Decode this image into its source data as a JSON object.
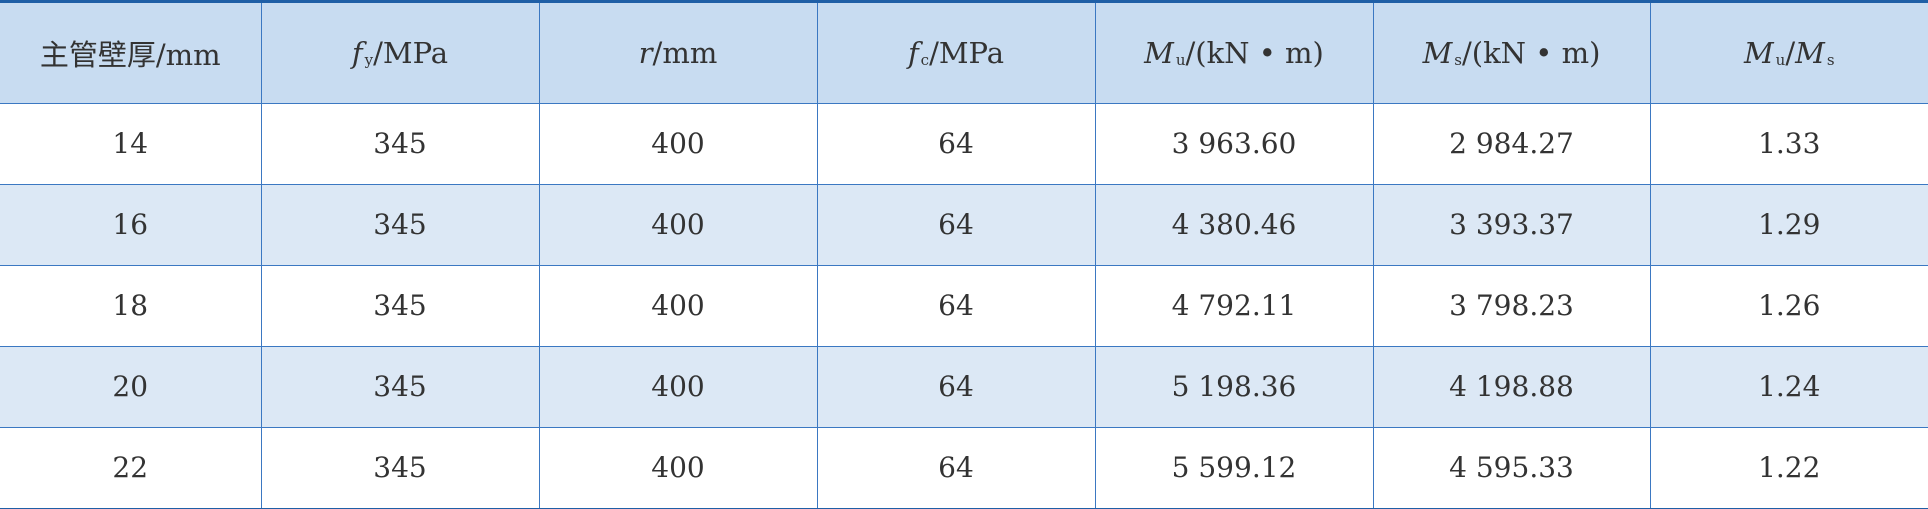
{
  "table": {
    "headers": [
      {
        "text": "主管壁厚/mm"
      },
      {
        "symbol": "f",
        "sub": "y",
        "unit": "/MPa"
      },
      {
        "symbol": "r",
        "sub": "",
        "unit": "/mm"
      },
      {
        "symbol": "f",
        "sub": "c",
        "unit": "/MPa"
      },
      {
        "symbol": "M",
        "sub": "u",
        "unit": "/(kN • m)"
      },
      {
        "symbol": "M",
        "sub": "s",
        "unit": "/(kN • m)"
      },
      {
        "symbol": "M",
        "sub": "u",
        "unit": "/",
        "symbol2": "M",
        "sub2": "s"
      }
    ],
    "rows": [
      [
        "14",
        "345",
        "400",
        "64",
        "3 963.60",
        "2 984.27",
        "1.33"
      ],
      [
        "16",
        "345",
        "400",
        "64",
        "4 380.46",
        "3 393.37",
        "1.29"
      ],
      [
        "18",
        "345",
        "400",
        "64",
        "4 792.11",
        "3 798.23",
        "1.26"
      ],
      [
        "20",
        "345",
        "400",
        "64",
        "5 198.36",
        "4 198.88",
        "1.24"
      ],
      [
        "22",
        "345",
        "400",
        "64",
        "5 599.12",
        "4 595.33",
        "1.22"
      ]
    ]
  }
}
